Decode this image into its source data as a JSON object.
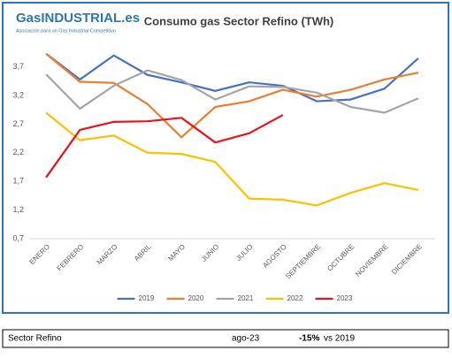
{
  "logo": {
    "name": "GasINDUSTRIAL.es",
    "tagline": "Asociación para un Gas Industrial Competitivo"
  },
  "chart_data": {
    "type": "line",
    "title": "Consumo gas Sector Refino (TWh)",
    "categories": [
      "ENERO",
      "FEBRERO",
      "MARZO",
      "ABRIL",
      "MAYO",
      "JUNIO",
      "JULIO",
      "AGOSTO",
      "SEPTIEMBRE",
      "OCTUBRE",
      "NOVIEMBRE",
      "DICIEMBRE"
    ],
    "ylim": [
      0.7,
      4.05
    ],
    "yticks": [
      {
        "value": 0.7,
        "label": "0,7"
      },
      {
        "value": 1.2,
        "label": "1,2"
      },
      {
        "value": 1.7,
        "label": "1,7"
      },
      {
        "value": 2.2,
        "label": "2,2"
      },
      {
        "value": 2.7,
        "label": "2,7"
      },
      {
        "value": 3.2,
        "label": "3,2"
      },
      {
        "value": 3.7,
        "label": "3,7"
      }
    ],
    "grid": false,
    "legend": "bottom",
    "series": [
      {
        "name": "2019",
        "color": "#4472c4",
        "values": [
          3.93,
          3.48,
          3.9,
          3.56,
          3.43,
          3.28,
          3.43,
          3.37,
          3.1,
          3.13,
          3.32,
          3.85
        ]
      },
      {
        "name": "2020",
        "color": "#ed7d31",
        "values": [
          3.93,
          3.44,
          3.42,
          3.05,
          2.47,
          3.0,
          3.1,
          3.3,
          3.18,
          3.3,
          3.48,
          3.6
        ]
      },
      {
        "name": "2021",
        "color": "#a5a5a5",
        "values": [
          3.57,
          2.97,
          3.37,
          3.64,
          3.47,
          3.13,
          3.36,
          3.35,
          3.25,
          3.0,
          2.9,
          3.15
        ]
      },
      {
        "name": "2022",
        "color": "#ffc000",
        "values": [
          2.9,
          2.42,
          2.5,
          2.2,
          2.18,
          2.04,
          1.4,
          1.38,
          1.28,
          1.5,
          1.67,
          1.55
        ]
      },
      {
        "name": "2023",
        "color": "#e8141c",
        "values": [
          1.77,
          2.6,
          2.74,
          2.75,
          2.81,
          2.38,
          2.54,
          2.86,
          null,
          null,
          null,
          null
        ]
      }
    ]
  },
  "footer": {
    "sector": "Sector Refino",
    "period": "ago-23",
    "change": "-15%",
    "comparison": "vs 2019"
  }
}
